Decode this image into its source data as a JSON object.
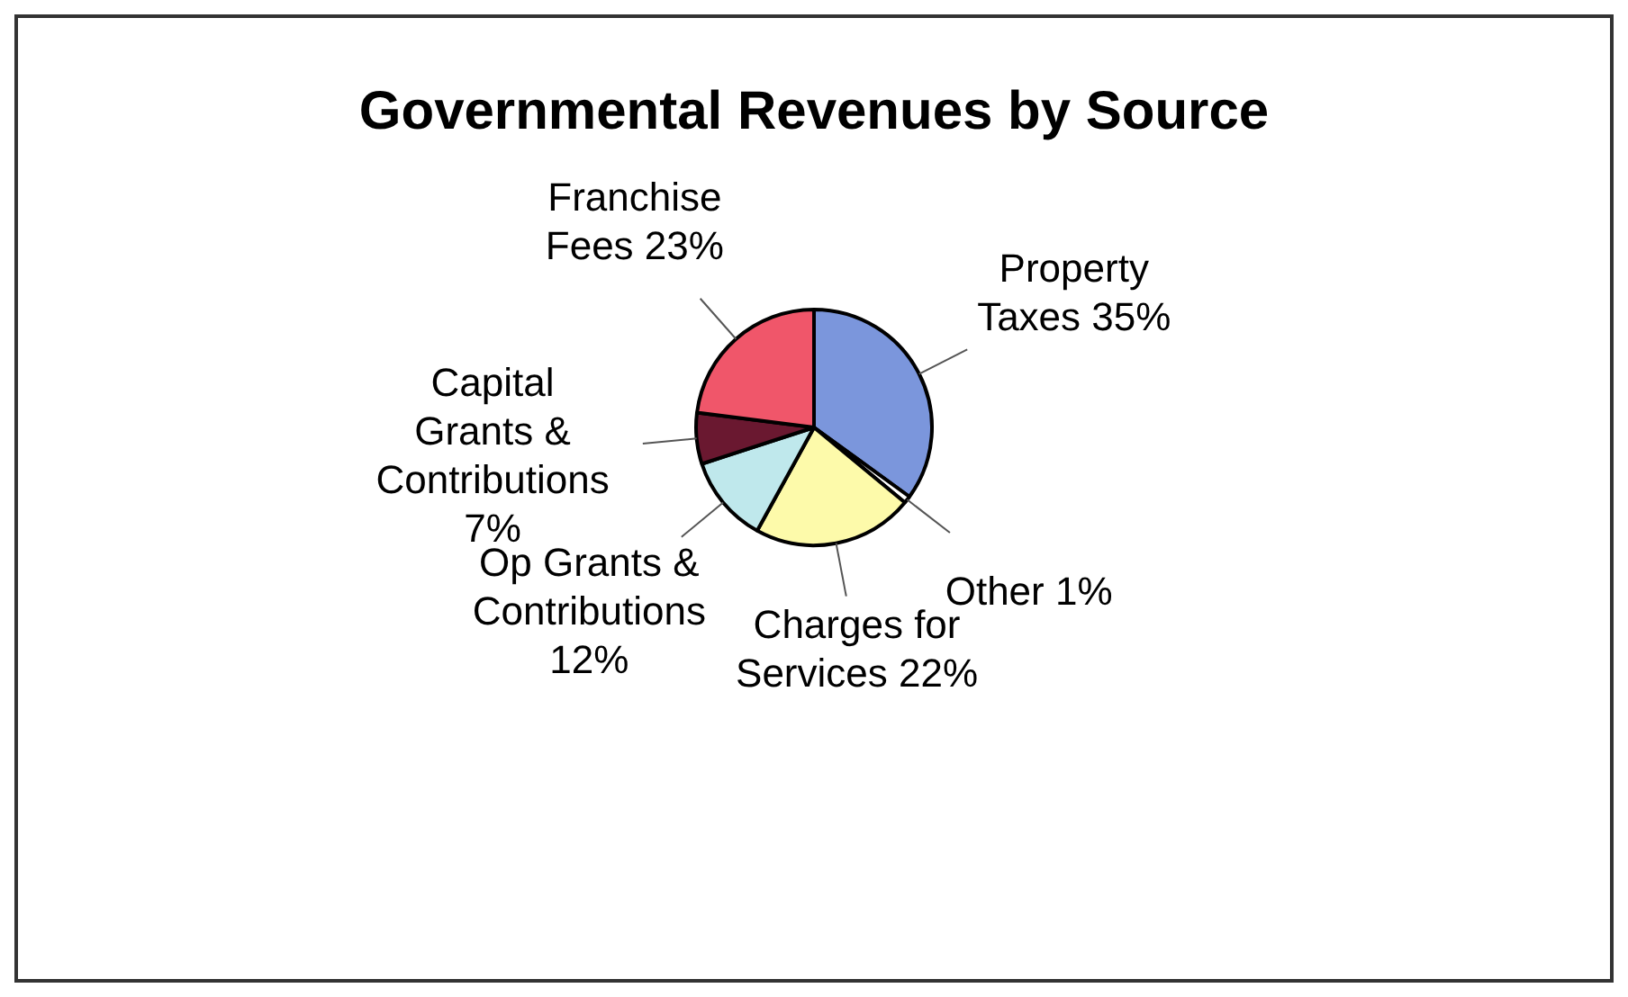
{
  "chart_data": {
    "type": "pie",
    "title": "Governmental Revenues by Source",
    "categories": [
      "Property Taxes",
      "Other",
      "Charges for Services",
      "Op Grants & Contributions",
      "Capital Grants & Contributions",
      "Franchise Fees"
    ],
    "values": [
      35,
      1,
      22,
      12,
      7,
      23
    ],
    "colors": [
      "#7b96dc",
      "#ffffff",
      "#fdfaaa",
      "#bfe8ec",
      "#6a1830",
      "#f0566a"
    ],
    "value_labels": [
      "35%",
      "1%",
      "22%",
      "12%",
      "7%",
      "23%"
    ],
    "legend": false
  }
}
